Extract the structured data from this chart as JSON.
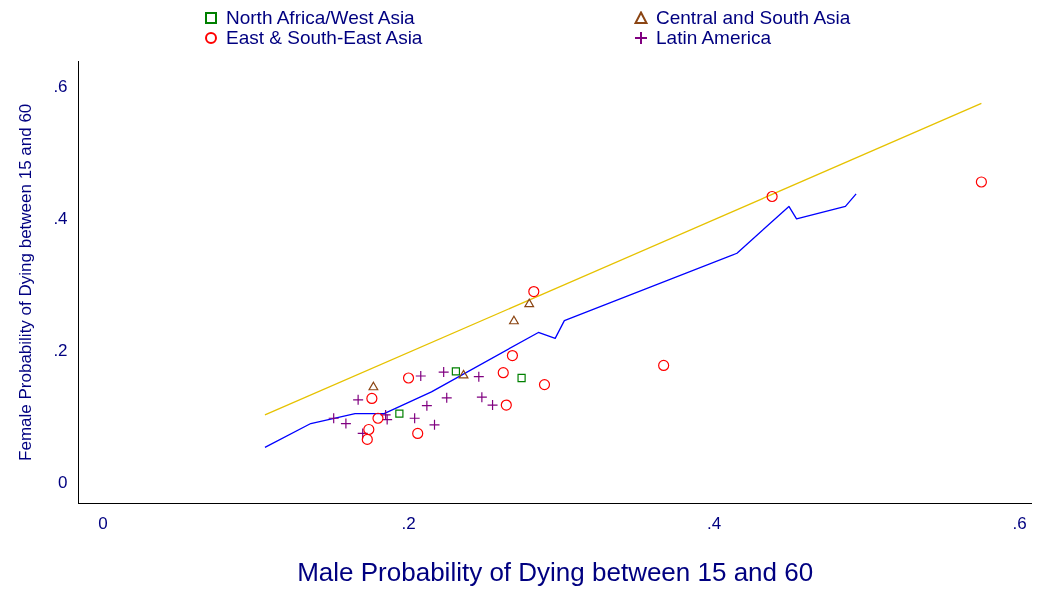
{
  "chart_data": {
    "type": "scatter",
    "xlabel": "Male Probability of Dying between 15 and 60",
    "ylabel": "Female Probability of Dying between 15 and 60",
    "xlim": [
      -0.016,
      0.608
    ],
    "ylim": [
      -0.03,
      0.64
    ],
    "xticks": [
      {
        "value": 0,
        "label": "0"
      },
      {
        "value": 0.2,
        "label": ".2"
      },
      {
        "value": 0.4,
        "label": ".4"
      },
      {
        "value": 0.6,
        "label": ".6"
      }
    ],
    "yticks": [
      {
        "value": 0,
        "label": "0"
      },
      {
        "value": 0.2,
        "label": ".2"
      },
      {
        "value": 0.4,
        "label": ".4"
      },
      {
        "value": 0.6,
        "label": ".6"
      }
    ],
    "grid": false,
    "legend": "top",
    "series": [
      {
        "name": "North Africa/West Asia",
        "color": "#008000",
        "marker": "square",
        "x": [
          0.231,
          0.274,
          0.194
        ],
        "values": [
          0.17,
          0.16,
          0.106
        ]
      },
      {
        "name": "Central and South Asia",
        "color": "#8b4513",
        "marker": "triangle",
        "x": [
          0.279,
          0.269,
          0.177,
          0.236
        ],
        "values": [
          0.272,
          0.246,
          0.146,
          0.164
        ]
      },
      {
        "name": "East & South-East Asia",
        "color": "#ff0000",
        "marker": "circle",
        "x": [
          0.282,
          0.268,
          0.262,
          0.289,
          0.264,
          0.2,
          0.176,
          0.18,
          0.174,
          0.173,
          0.206,
          0.367,
          0.438,
          0.575
        ],
        "values": [
          0.291,
          0.194,
          0.168,
          0.15,
          0.119,
          0.16,
          0.129,
          0.099,
          0.082,
          0.067,
          0.076,
          0.179,
          0.435,
          0.457
        ]
      },
      {
        "name": "Latin America",
        "color": "#800080",
        "marker": "cross",
        "x": [
          0.208,
          0.223,
          0.246,
          0.167,
          0.225,
          0.248,
          0.255,
          0.212,
          0.151,
          0.159,
          0.185,
          0.186,
          0.204,
          0.217,
          0.17
        ],
        "values": [
          0.163,
          0.169,
          0.162,
          0.127,
          0.13,
          0.131,
          0.119,
          0.118,
          0.099,
          0.091,
          0.104,
          0.097,
          0.099,
          0.089,
          0.076
        ]
      },
      {
        "type": "line",
        "color": "#0000ff",
        "marker": "none",
        "x": [
          0.106,
          0.136,
          0.165,
          0.184,
          0.215,
          0.285,
          0.296,
          0.302,
          0.415,
          0.449,
          0.454,
          0.486,
          0.493
        ],
        "values": [
          0.055,
          0.091,
          0.106,
          0.106,
          0.139,
          0.229,
          0.22,
          0.247,
          0.349,
          0.42,
          0.401,
          0.42,
          0.439
        ]
      },
      {
        "type": "line",
        "color": "#e6c200",
        "marker": "none",
        "x": [
          0.106,
          0.575
        ],
        "values": [
          0.104,
          0.576
        ]
      }
    ]
  }
}
